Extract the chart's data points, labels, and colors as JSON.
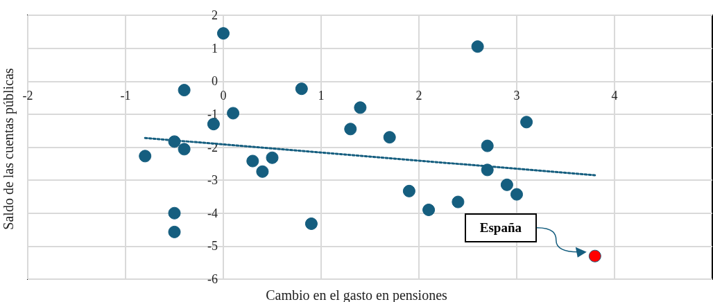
{
  "chart_data": {
    "type": "scatter",
    "xlabel": "Cambio en el gasto en pensiones",
    "ylabel": "Saldo de las cuentas públicas",
    "xlim": [
      -2,
      5
    ],
    "xticks": [
      -2,
      -1,
      0,
      1,
      2,
      3,
      4
    ],
    "ylim": [
      -6,
      2
    ],
    "yticks": [
      -6,
      -5,
      -4,
      -3,
      -2,
      -1,
      0,
      1,
      2
    ],
    "grid": true,
    "marker": "circle",
    "series": [
      {
        "color": "#155e7f",
        "x": [
          0,
          -0.4,
          0.8,
          1.4,
          0.1,
          -0.1,
          1.3,
          1.7,
          -0.5,
          -0.4,
          -0.8,
          0.3,
          0.5,
          0.4,
          1.9,
          2.1,
          2.4,
          -0.5,
          -0.5,
          0.9,
          2.6,
          3.1,
          2.7,
          2.7,
          2.9,
          3.0
        ],
        "values": [
          1.45,
          -0.27,
          -0.23,
          -0.8,
          -0.97,
          -1.3,
          -1.45,
          -1.7,
          -1.83,
          -2.06,
          -2.27,
          -2.42,
          -2.32,
          -2.74,
          -3.33,
          -3.9,
          -3.66,
          -4.0,
          -4.57,
          -4.32,
          1.05,
          -1.24,
          -1.96,
          -2.69,
          -3.14,
          -3.43
        ]
      },
      {
        "color": "#ff0000",
        "x": [
          3.8
        ],
        "values": [
          -5.3
        ]
      },
      {
        "type": "line",
        "color": "#155e7f",
        "line_style": "dotted",
        "marker": "none",
        "x": [
          -0.8,
          3.8
        ],
        "values": [
          -1.72,
          -2.85
        ]
      }
    ],
    "annotations": [
      "España"
    ]
  }
}
